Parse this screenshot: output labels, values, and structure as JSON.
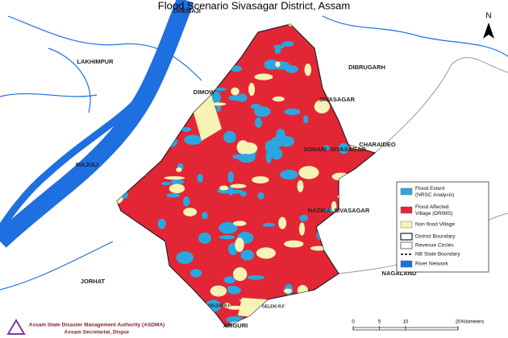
{
  "title": "Flood Scenario Sivasagar District, Assam",
  "north_arrow": "N",
  "map": {
    "labels": [
      "DHEMAJI",
      "LAKHIMPUR",
      "DIBRUGARH",
      "SIVASAGAR",
      "CHARAIDEO",
      "MAJULI",
      "DIMOW",
      "SONARI_SIVASAGAR",
      "NAZIRA_SIVASAGAR",
      "JORHAT",
      "NAGALAND",
      "AMGURI",
      "GELEKI R.F",
      "GELEKI R.F"
    ]
  },
  "legend": {
    "items": [
      "Flood Extent (NRSC Analysis)",
      "Flood Affected Village (DRIMS)",
      "Non flood Village",
      "District Boundary",
      "Revenue Circles",
      "NB State Boundary",
      "River Network"
    ]
  },
  "scale": {
    "ticks": [
      0,
      5,
      10,
      20
    ],
    "unit": "Kilometers"
  },
  "footer": {
    "organization": "Assam State Disaster Management Authority (ASDMA)",
    "address": "Assam Secretariat, Dispur"
  }
}
